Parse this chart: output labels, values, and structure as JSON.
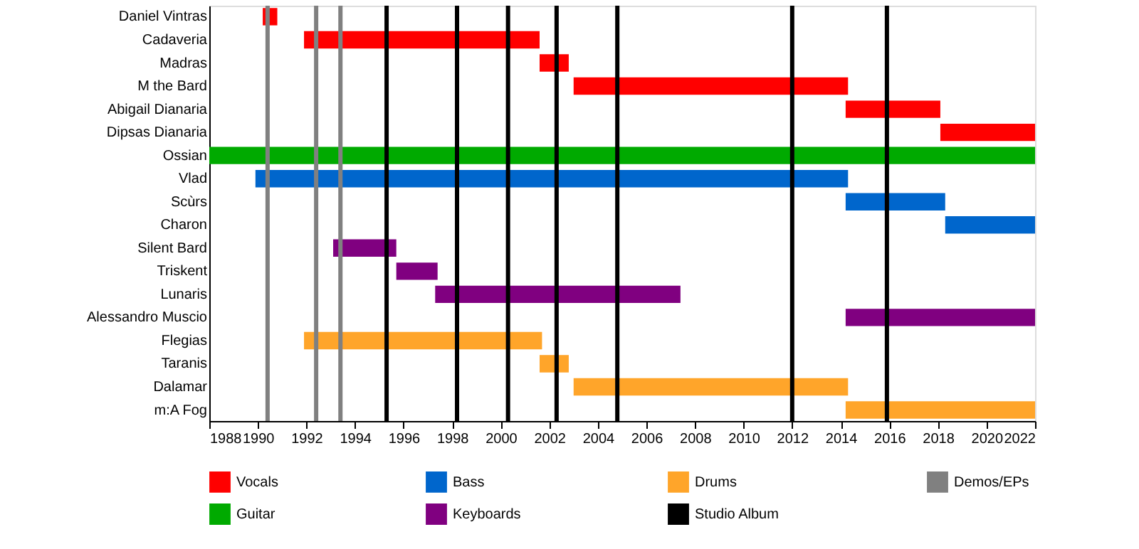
{
  "chart_data": {
    "type": "bar",
    "orientation": "horizontal",
    "categories": [
      "Daniel Vintras",
      "Cadaveria",
      "Madras",
      "M the Bard",
      "Abigail Dianaria",
      "Dipsas Dianaria",
      "Ossian",
      "Vlad",
      "Scùrs",
      "Charon",
      "Silent Bard",
      "Triskent",
      "Lunaris",
      "Alessandro Muscio",
      "Flegias",
      "Taranis",
      "Dalamar",
      "m:A Fog"
    ],
    "series": [
      {
        "name": "Vocals",
        "color": "#ff0000",
        "base": [
          1990.2,
          1991.9,
          2001.6,
          2003.0,
          2014.2,
          2018.1,
          null,
          null,
          null,
          null,
          null,
          null,
          null,
          null,
          null,
          null,
          null,
          null
        ],
        "values": [
          0.6,
          9.7,
          1.2,
          11.3,
          3.9,
          3.9,
          null,
          null,
          null,
          null,
          null,
          null,
          null,
          null,
          null,
          null,
          null,
          null
        ]
      },
      {
        "name": "Guitar",
        "color": "#00aa00",
        "base": [
          null,
          null,
          null,
          null,
          null,
          null,
          1988,
          null,
          null,
          null,
          null,
          null,
          null,
          null,
          null,
          null,
          null,
          null
        ],
        "values": [
          null,
          null,
          null,
          null,
          null,
          null,
          34,
          null,
          null,
          null,
          null,
          null,
          null,
          null,
          null,
          null,
          null,
          null
        ]
      },
      {
        "name": "Bass",
        "color": "#0066cc",
        "base": [
          null,
          null,
          null,
          null,
          null,
          null,
          null,
          1989.9,
          2014.2,
          2018.3,
          null,
          null,
          null,
          null,
          null,
          null,
          null,
          null
        ],
        "values": [
          null,
          null,
          null,
          null,
          null,
          null,
          null,
          24.4,
          4.1,
          3.7,
          null,
          null,
          null,
          null,
          null,
          null,
          null,
          null
        ]
      },
      {
        "name": "Keyboards",
        "color": "#800080",
        "base": [
          null,
          null,
          null,
          null,
          null,
          null,
          null,
          null,
          null,
          null,
          1993.1,
          1995.7,
          1997.3,
          2014.2,
          null,
          null,
          null,
          null
        ],
        "values": [
          null,
          null,
          null,
          null,
          null,
          null,
          null,
          null,
          null,
          null,
          2.6,
          1.7,
          10.1,
          7.8,
          null,
          null,
          null,
          null
        ]
      },
      {
        "name": "Drums",
        "color": "#ffa52a",
        "base": [
          null,
          null,
          null,
          null,
          null,
          null,
          null,
          null,
          null,
          null,
          null,
          null,
          null,
          null,
          1991.9,
          2001.6,
          2003.0,
          2014.2
        ],
        "values": [
          null,
          null,
          null,
          null,
          null,
          null,
          null,
          null,
          null,
          null,
          null,
          null,
          null,
          null,
          9.8,
          1.2,
          11.3,
          7.8
        ]
      }
    ],
    "ref_lines": [
      {
        "axis": "x",
        "value": 1995.3,
        "label": "Studio Album",
        "color": "#000000"
      },
      {
        "axis": "x",
        "value": 1998.2,
        "color": "#000000"
      },
      {
        "axis": "x",
        "value": 2000.3,
        "color": "#000000"
      },
      {
        "axis": "x",
        "value": 2002.3,
        "color": "#000000"
      },
      {
        "axis": "x",
        "value": 2004.8,
        "color": "#000000"
      },
      {
        "axis": "x",
        "value": 2012.0,
        "color": "#000000"
      },
      {
        "axis": "x",
        "value": 2015.9,
        "color": "#000000"
      },
      {
        "axis": "x",
        "value": 1990.4,
        "label": "Demos/EPs",
        "color": "#808080"
      },
      {
        "axis": "x",
        "value": 1992.4,
        "color": "#808080"
      },
      {
        "axis": "x",
        "value": 1993.4,
        "color": "#808080"
      }
    ],
    "xlim": [
      1988,
      2022
    ],
    "xticks": [
      1988,
      1990,
      1992,
      1994,
      1996,
      1998,
      2000,
      2002,
      2004,
      2006,
      2008,
      2010,
      2012,
      2014,
      2016,
      2018,
      2020,
      2022
    ],
    "legend": "bottom"
  }
}
